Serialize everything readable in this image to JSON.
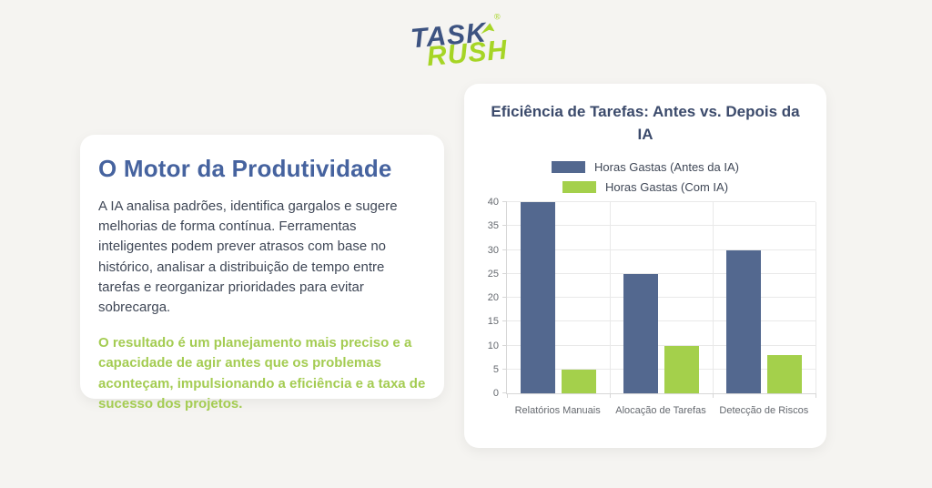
{
  "logo": {
    "task": "TASK",
    "rush": "RUSH",
    "registered": "®"
  },
  "left_card": {
    "title": "O Motor da Produtividade",
    "paragraph": "A IA analisa padrões, identifica gargalos e sugere melhorias de forma contínua. Ferramentas inteligentes podem prever atrasos com base no histórico, analisar a distribuição de tempo entre tarefas e reorganizar prioridades para evitar sobrecarga.",
    "highlight": "O resultado é um planejamento mais preciso e a capacidade de agir antes que os problemas aconteçam, impulsionando a eficiência e a taxa de sucesso dos projetos."
  },
  "chart_data": {
    "type": "bar",
    "title": "Eficiência de Tarefas: Antes vs. Depois da IA",
    "categories": [
      "Relatórios Manuais",
      "Alocação de Tarefas",
      "Detecção de Riscos"
    ],
    "series": [
      {
        "name": "Horas Gastas (Antes da IA)",
        "color": "#53688f",
        "values": [
          40,
          25,
          30
        ]
      },
      {
        "name": "Horas Gastas (Com IA)",
        "color": "#a4d04b",
        "values": [
          5,
          10,
          8
        ]
      }
    ],
    "xlabel": "",
    "ylabel": "",
    "ylim": [
      0,
      40
    ],
    "ytick_step": 5,
    "grid": true,
    "legend_position": "top"
  },
  "colors": {
    "background": "#f5f4f1",
    "accent_blue": "#46639f",
    "accent_green": "#a4cc52",
    "logo_blue": "#3d5381",
    "logo_green": "#a6d525"
  }
}
